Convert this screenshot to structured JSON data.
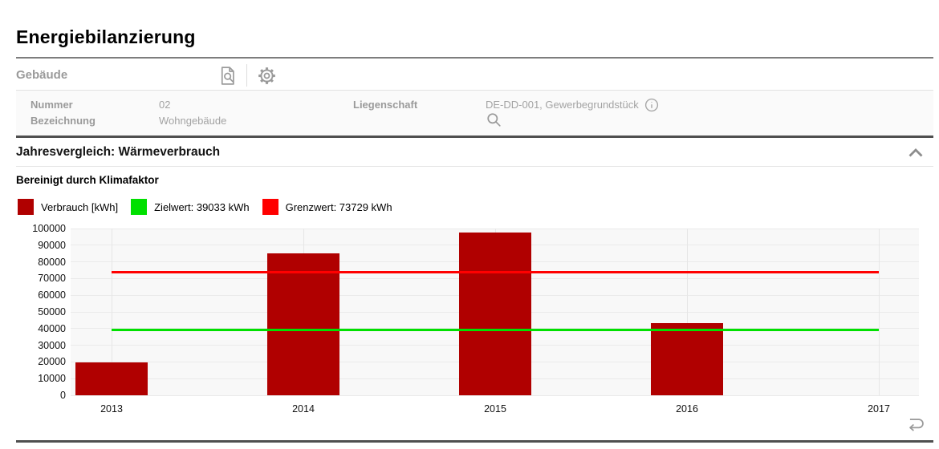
{
  "page": {
    "title": "Energiebilanzierung"
  },
  "building_panel": {
    "title": "Gebäude",
    "fields": {
      "nummer_label": "Nummer",
      "nummer_value": "02",
      "bezeichnung_label": "Bezeichnung",
      "bezeichnung_value": "Wohngebäude",
      "liegenschaft_label": "Liegenschaft",
      "liegenschaft_value": "DE-DD-001, Gewerbegrundstück"
    }
  },
  "section": {
    "title": "Jahresvergleich: Wärmeverbrauch",
    "subtitle": "Bereinigt durch Klimafaktor"
  },
  "legend": [
    {
      "label": "Verbrauch [kWh]",
      "color": "#b00000"
    },
    {
      "label": "Zielwert: 39033 kWh",
      "color": "#00e000"
    },
    {
      "label": "Grenzwert: 73729 kWh",
      "color": "#ff0000"
    }
  ],
  "chart_data": {
    "type": "bar",
    "title": "Bereinigt durch Klimafaktor",
    "categories": [
      "2013",
      "2014",
      "2015",
      "2016",
      "2017"
    ],
    "series": [
      {
        "name": "Verbrauch [kWh]",
        "color": "#b00000",
        "values": [
          19700,
          85000,
          97600,
          43300,
          null
        ]
      }
    ],
    "reference_lines": [
      {
        "name": "Zielwert",
        "value": 39033,
        "color": "#00e000"
      },
      {
        "name": "Grenzwert",
        "value": 73729,
        "color": "#ff0000"
      }
    ],
    "xlabel": "",
    "ylabel": "",
    "ylim": [
      0,
      100000
    ],
    "ytick_step": 10000,
    "grid": true,
    "legend_position": "top"
  }
}
